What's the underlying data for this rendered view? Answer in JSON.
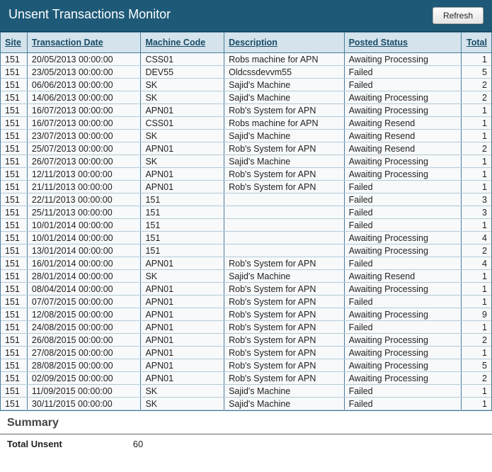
{
  "header": {
    "title": "Unsent Transactions Monitor",
    "refresh_label": "Refresh"
  },
  "columns": {
    "site": "Site",
    "date": "Transaction Date",
    "code": "Machine Code",
    "desc": "Description",
    "status": "Posted Status",
    "total": "Total"
  },
  "rows": [
    {
      "site": "151",
      "date": "20/05/2013 00:00:00",
      "code": "CSS01",
      "desc": "Robs machine for APN",
      "status": "Awaiting Processing",
      "total": "1"
    },
    {
      "site": "151",
      "date": "23/05/2013 00:00:00",
      "code": "DEV55",
      "desc": "Oldcssdevvm55",
      "status": "Failed",
      "total": "5"
    },
    {
      "site": "151",
      "date": "06/06/2013 00:00:00",
      "code": "SK",
      "desc": "Sajid's Machine",
      "status": "Failed",
      "total": "2"
    },
    {
      "site": "151",
      "date": "14/06/2013 00:00:00",
      "code": "SK",
      "desc": "Sajid's Machine",
      "status": "Awaiting Processing",
      "total": "2"
    },
    {
      "site": "151",
      "date": "16/07/2013 00:00:00",
      "code": "APN01",
      "desc": "Rob's System for APN",
      "status": "Awaiting Processing",
      "total": "1"
    },
    {
      "site": "151",
      "date": "16/07/2013 00:00:00",
      "code": "CSS01",
      "desc": "Robs machine for APN",
      "status": "Awaiting Resend",
      "total": "1"
    },
    {
      "site": "151",
      "date": "23/07/2013 00:00:00",
      "code": "SK",
      "desc": "Sajid's Machine",
      "status": "Awaiting Resend",
      "total": "1"
    },
    {
      "site": "151",
      "date": "25/07/2013 00:00:00",
      "code": "APN01",
      "desc": "Rob's System for APN",
      "status": "Awaiting Resend",
      "total": "2"
    },
    {
      "site": "151",
      "date": "26/07/2013 00:00:00",
      "code": "SK",
      "desc": "Sajid's Machine",
      "status": "Awaiting Processing",
      "total": "1"
    },
    {
      "site": "151",
      "date": "12/11/2013 00:00:00",
      "code": "APN01",
      "desc": "Rob's System for APN",
      "status": "Awaiting Processing",
      "total": "1"
    },
    {
      "site": "151",
      "date": "21/11/2013 00:00:00",
      "code": "APN01",
      "desc": "Rob's System for APN",
      "status": "Failed",
      "total": "1"
    },
    {
      "site": "151",
      "date": "22/11/2013 00:00:00",
      "code": "151",
      "desc": "",
      "status": "Failed",
      "total": "3"
    },
    {
      "site": "151",
      "date": "25/11/2013 00:00:00",
      "code": "151",
      "desc": "",
      "status": "Failed",
      "total": "3"
    },
    {
      "site": "151",
      "date": "10/01/2014 00:00:00",
      "code": "151",
      "desc": "",
      "status": "Failed",
      "total": "1"
    },
    {
      "site": "151",
      "date": "10/01/2014 00:00:00",
      "code": "151",
      "desc": "",
      "status": "Awaiting Processing",
      "total": "4"
    },
    {
      "site": "151",
      "date": "13/01/2014 00:00:00",
      "code": "151",
      "desc": "",
      "status": "Awaiting Processing",
      "total": "2"
    },
    {
      "site": "151",
      "date": "16/01/2014 00:00:00",
      "code": "APN01",
      "desc": "Rob's System for APN",
      "status": "Failed",
      "total": "4"
    },
    {
      "site": "151",
      "date": "28/01/2014 00:00:00",
      "code": "SK",
      "desc": "Sajid's Machine",
      "status": "Awaiting Resend",
      "total": "1"
    },
    {
      "site": "151",
      "date": "08/04/2014 00:00:00",
      "code": "APN01",
      "desc": "Rob's System for APN",
      "status": "Awaiting Processing",
      "total": "1"
    },
    {
      "site": "151",
      "date": "07/07/2015 00:00:00",
      "code": "APN01",
      "desc": "Rob's System for APN",
      "status": "Failed",
      "total": "1"
    },
    {
      "site": "151",
      "date": "12/08/2015 00:00:00",
      "code": "APN01",
      "desc": "Rob's System for APN",
      "status": "Awaiting Processing",
      "total": "9"
    },
    {
      "site": "151",
      "date": "24/08/2015 00:00:00",
      "code": "APN01",
      "desc": "Rob's System for APN",
      "status": "Failed",
      "total": "1"
    },
    {
      "site": "151",
      "date": "26/08/2015 00:00:00",
      "code": "APN01",
      "desc": "Rob's System for APN",
      "status": "Awaiting Processing",
      "total": "2"
    },
    {
      "site": "151",
      "date": "27/08/2015 00:00:00",
      "code": "APN01",
      "desc": "Rob's System for APN",
      "status": "Awaiting Processing",
      "total": "1"
    },
    {
      "site": "151",
      "date": "28/08/2015 00:00:00",
      "code": "APN01",
      "desc": "Rob's System for APN",
      "status": "Awaiting Processing",
      "total": "5"
    },
    {
      "site": "151",
      "date": "02/09/2015 00:00:00",
      "code": "APN01",
      "desc": "Rob's System for APN",
      "status": "Awaiting Processing",
      "total": "2"
    },
    {
      "site": "151",
      "date": "11/09/2015 00:00:00",
      "code": "SK",
      "desc": "Sajid's Machine",
      "status": "Failed",
      "total": "1"
    },
    {
      "site": "151",
      "date": "30/11/2015 00:00:00",
      "code": "SK",
      "desc": "Sajid's Machine",
      "status": "Failed",
      "total": "1"
    }
  ],
  "summary": {
    "title": "Summary",
    "unsent_label": "Total Unsent",
    "unsent_value": "60"
  },
  "colors": {
    "header_bg": "#1e5a78",
    "colhead_bg": "#d4e3ec",
    "border": "#4a7d99",
    "row_border": "#b5cbd8",
    "heading_text": "#194b66"
  }
}
